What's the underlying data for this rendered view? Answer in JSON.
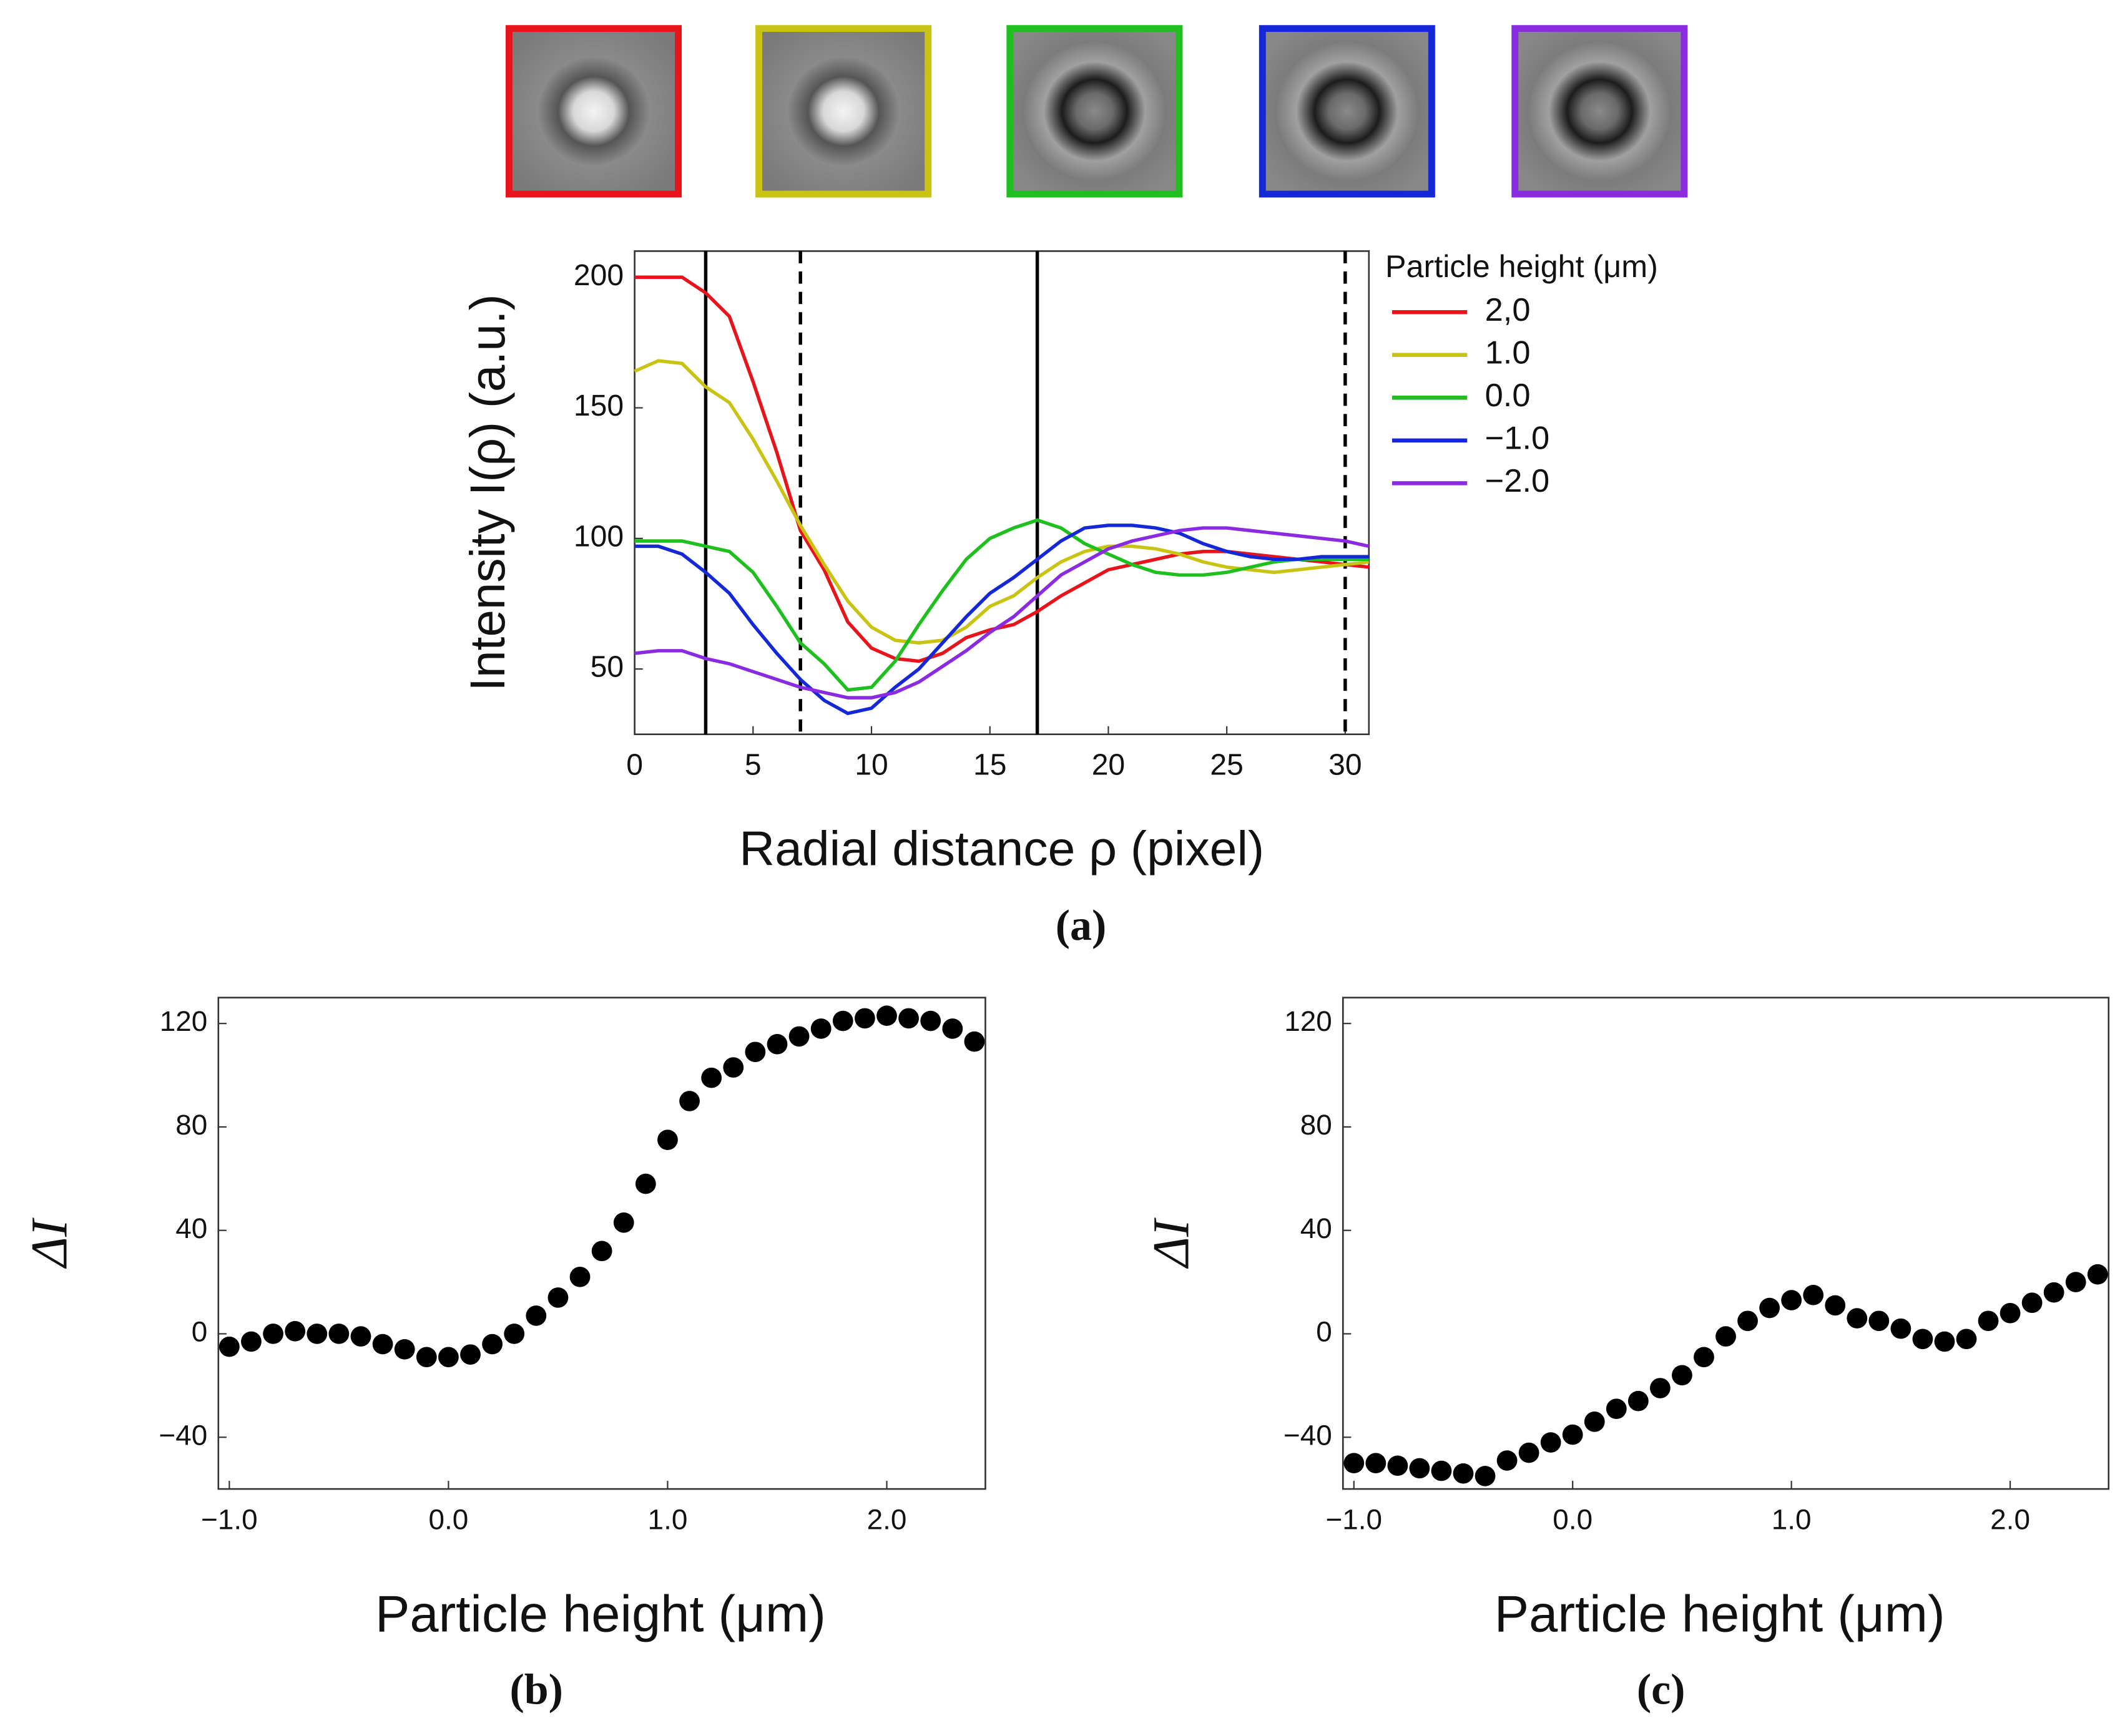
{
  "chart_data": [
    {
      "type": "line",
      "caption": "(a)",
      "xlabel": "Radial distance ρ (pixel)",
      "ylabel": "Intensity I(ρ) (a.u.)",
      "legend_title": "Particle height (μm)",
      "legend": "right",
      "x": [
        0,
        1,
        2,
        3,
        4,
        5,
        6,
        7,
        8,
        9,
        10,
        11,
        12,
        13,
        14,
        15,
        16,
        17,
        18,
        19,
        20,
        21,
        22,
        23,
        24,
        25,
        26,
        27,
        28,
        29,
        30,
        31
      ],
      "series": [
        {
          "name": "2,0",
          "color": "#e8141c",
          "values": [
            200,
            200,
            200,
            194,
            185,
            160,
            133,
            103,
            88,
            68,
            58,
            54,
            53,
            56,
            62,
            65,
            67,
            72,
            78,
            83,
            88,
            90,
            92,
            94,
            95,
            95,
            94,
            93,
            92,
            91,
            90,
            89
          ]
        },
        {
          "name": "1.0",
          "color": "#c9c414",
          "values": [
            164,
            168,
            167,
            158,
            152,
            138,
            122,
            105,
            90,
            76,
            66,
            61,
            60,
            61,
            66,
            74,
            78,
            85,
            91,
            95,
            97,
            97,
            96,
            94,
            91,
            89,
            88,
            87,
            88,
            89,
            90,
            91
          ]
        },
        {
          "name": "0.0",
          "color": "#1fbf1f",
          "values": [
            99,
            99,
            99,
            97,
            95,
            87,
            74,
            60,
            52,
            42,
            43,
            53,
            67,
            80,
            92,
            100,
            104,
            107,
            104,
            98,
            94,
            90,
            87,
            86,
            86,
            87,
            89,
            91,
            92,
            92,
            92,
            92
          ]
        },
        {
          "name": "−1.0",
          "color": "#1428d8",
          "values": [
            97,
            97,
            94,
            87,
            79,
            67,
            56,
            46,
            38,
            33,
            35,
            43,
            50,
            60,
            70,
            79,
            85,
            92,
            99,
            104,
            105,
            105,
            104,
            102,
            98,
            95,
            93,
            92,
            92,
            93,
            93,
            93
          ]
        },
        {
          "name": "−2.0",
          "color": "#8a2be2",
          "values": [
            56,
            57,
            57,
            54,
            52,
            49,
            46,
            43,
            41,
            39,
            39,
            41,
            45,
            51,
            57,
            64,
            70,
            78,
            86,
            91,
            96,
            99,
            101,
            103,
            104,
            104,
            103,
            102,
            101,
            100,
            99,
            97
          ]
        }
      ],
      "vlines": [
        {
          "x": 3,
          "style": "solid"
        },
        {
          "x": 7,
          "style": "dashed"
        },
        {
          "x": 17,
          "style": "solid"
        },
        {
          "x": 30,
          "style": "dashed"
        }
      ],
      "xlim": [
        0,
        31
      ],
      "ylim": [
        25,
        210
      ],
      "xticks": [
        0,
        5,
        10,
        15,
        20,
        25,
        30
      ],
      "yticks": [
        50,
        100,
        150,
        200
      ]
    },
    {
      "type": "scatter",
      "caption": "(b)",
      "xlabel": "Particle height (μm)",
      "ylabel": "ΔI",
      "color": "#000000",
      "x": [
        -1.0,
        -0.9,
        -0.8,
        -0.7,
        -0.6,
        -0.5,
        -0.4,
        -0.3,
        -0.2,
        -0.1,
        0.0,
        0.1,
        0.2,
        0.3,
        0.4,
        0.5,
        0.6,
        0.7,
        0.8,
        0.9,
        1.0,
        1.1,
        1.2,
        1.3,
        1.4,
        1.5,
        1.6,
        1.7,
        1.8,
        1.9,
        2.0,
        2.1,
        2.2,
        2.3,
        2.4
      ],
      "values": [
        -5,
        -3,
        0,
        1,
        0,
        0,
        -1,
        -4,
        -6,
        -9,
        -9,
        -8,
        -4,
        0,
        7,
        14,
        22,
        32,
        43,
        58,
        75,
        90,
        99,
        103,
        109,
        112,
        115,
        118,
        121,
        122,
        123,
        122,
        121,
        118,
        113
      ],
      "xlim": [
        -1.05,
        2.45
      ],
      "ylim": [
        -60,
        130
      ],
      "xticks": [
        {
          "value": -1,
          "label": "−1.0"
        },
        {
          "value": 0,
          "label": "0.0"
        },
        {
          "value": 1,
          "label": "1.0"
        },
        {
          "value": 2,
          "label": "2.0"
        }
      ],
      "yticks": [
        {
          "value": -40,
          "label": "−40"
        },
        0,
        40,
        80,
        120
      ]
    },
    {
      "type": "scatter",
      "caption": "(c)",
      "xlabel": "Particle height (μm)",
      "ylabel": "ΔI",
      "color": "#000000",
      "x": [
        -1.0,
        -0.9,
        -0.8,
        -0.7,
        -0.6,
        -0.5,
        -0.4,
        -0.3,
        -0.2,
        -0.1,
        0.0,
        0.1,
        0.2,
        0.3,
        0.4,
        0.5,
        0.6,
        0.7,
        0.8,
        0.9,
        1.0,
        1.1,
        1.2,
        1.3,
        1.4,
        1.5,
        1.6,
        1.7,
        1.8,
        1.9,
        2.0,
        2.1,
        2.2,
        2.3,
        2.4
      ],
      "values": [
        -50,
        -50,
        -51,
        -52,
        -53,
        -54,
        -55,
        -49,
        -46,
        -42,
        -39,
        -34,
        -29,
        -26,
        -21,
        -16,
        -9,
        -1,
        5,
        10,
        13,
        15,
        11,
        6,
        5,
        2,
        -2,
        -3,
        -2,
        5,
        8,
        12,
        16,
        20,
        23
      ],
      "xlim": [
        -1.05,
        2.45
      ],
      "ylim": [
        -60,
        130
      ],
      "xticks": [
        {
          "value": -1,
          "label": "−1.0"
        },
        {
          "value": 0,
          "label": "0.0"
        },
        {
          "value": 1,
          "label": "1.0"
        },
        {
          "value": 2,
          "label": "2.0"
        }
      ],
      "yticks": [
        {
          "value": -40,
          "label": "−40"
        },
        0,
        40,
        80,
        120
      ]
    }
  ]
}
